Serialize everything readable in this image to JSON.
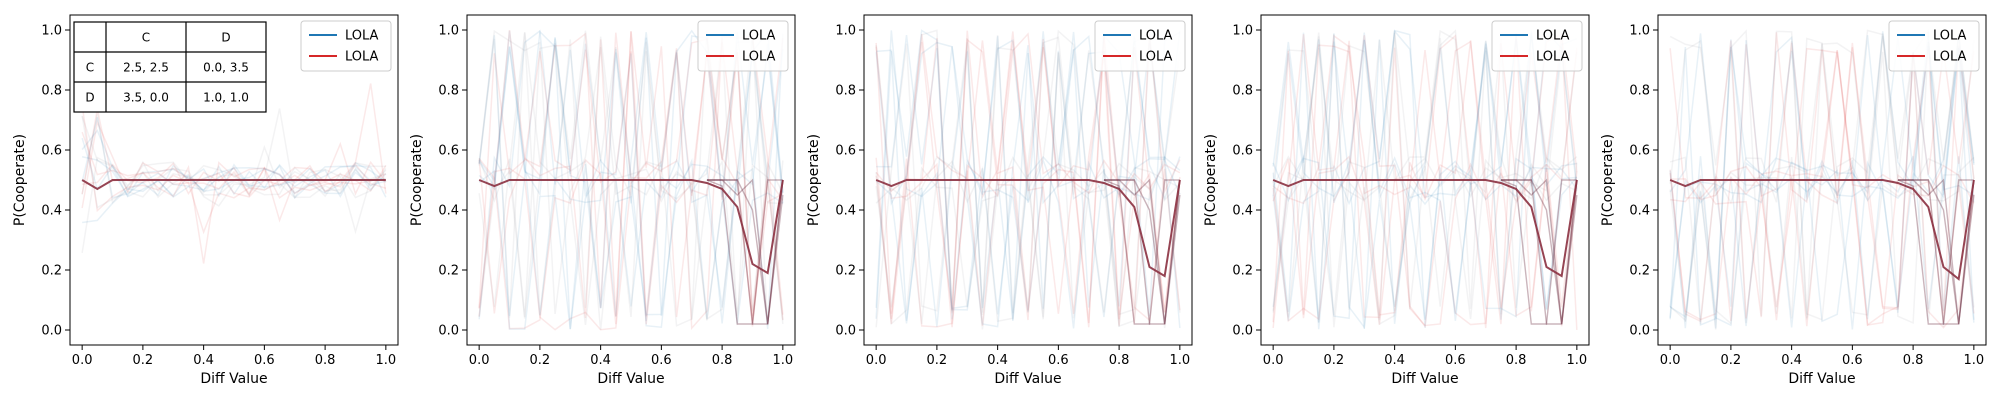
{
  "colors": {
    "blue": "#1f77b4",
    "red": "#d62728",
    "mean": "#8b3040",
    "grey": "#8a8a95"
  },
  "payoff_table": {
    "col_headers": [
      "C",
      "D"
    ],
    "rows": [
      {
        "label": "C",
        "cells": [
          "2.5, 2.5",
          "0.0, 3.5"
        ]
      },
      {
        "label": "D",
        "cells": [
          "3.5, 0.0",
          "1.0, 1.0"
        ]
      }
    ]
  },
  "chart_data": [
    {
      "type": "line",
      "xlabel": "Diff Value",
      "ylabel": "P(Cooperate)",
      "xlim": [
        -0.04,
        1.04
      ],
      "ylim": [
        -0.05,
        1.05
      ],
      "xticks": [
        "0.0",
        "0.2",
        "0.4",
        "0.6",
        "0.8",
        "1.0"
      ],
      "yticks": [
        "0.0",
        "0.2",
        "0.4",
        "0.6",
        "0.8",
        "1.0"
      ],
      "grid": false,
      "legend": "top-right",
      "legend_entries": [
        "LOLA",
        "LOLA"
      ],
      "series": [
        {
          "name": "LOLA",
          "color": "#1f77b4"
        },
        {
          "name": "LOLA",
          "color": "#d62728"
        }
      ],
      "x": [
        0.0,
        0.05,
        0.1,
        0.15,
        0.2,
        0.25,
        0.3,
        0.35,
        0.4,
        0.45,
        0.5,
        0.55,
        0.6,
        0.65,
        0.7,
        0.75,
        0.8,
        0.85,
        0.9,
        0.95,
        1.0
      ],
      "mean_curve": [
        0.5,
        0.47,
        0.5,
        0.5,
        0.5,
        0.5,
        0.5,
        0.5,
        0.5,
        0.5,
        0.5,
        0.5,
        0.5,
        0.5,
        0.5,
        0.5,
        0.5,
        0.5,
        0.5,
        0.5,
        0.5
      ],
      "faint_run_pattern": "low_noise",
      "has_payoff_table": true
    },
    {
      "type": "line",
      "xlabel": "Diff Value",
      "ylabel": "P(Cooperate)",
      "xlim": [
        -0.04,
        1.04
      ],
      "ylim": [
        -0.05,
        1.05
      ],
      "xticks": [
        "0.0",
        "0.2",
        "0.4",
        "0.6",
        "0.8",
        "1.0"
      ],
      "yticks": [
        "0.0",
        "0.2",
        "0.4",
        "0.6",
        "0.8",
        "1.0"
      ],
      "grid": false,
      "legend": "top-right",
      "legend_entries": [
        "LOLA",
        "LOLA"
      ],
      "series": [
        {
          "name": "LOLA",
          "color": "#1f77b4"
        },
        {
          "name": "LOLA",
          "color": "#d62728"
        }
      ],
      "x": [
        0.0,
        0.05,
        0.1,
        0.15,
        0.2,
        0.25,
        0.3,
        0.35,
        0.4,
        0.45,
        0.5,
        0.55,
        0.6,
        0.65,
        0.7,
        0.75,
        0.8,
        0.85,
        0.9,
        0.95,
        1.0
      ],
      "mean_curve": [
        0.5,
        0.48,
        0.5,
        0.5,
        0.5,
        0.5,
        0.5,
        0.5,
        0.5,
        0.5,
        0.5,
        0.5,
        0.5,
        0.5,
        0.5,
        0.49,
        0.47,
        0.41,
        0.22,
        0.19,
        0.5
      ],
      "faint_run_pattern": "high_noise",
      "has_payoff_table": false
    },
    {
      "type": "line",
      "xlabel": "Diff Value",
      "ylabel": "P(Cooperate)",
      "xlim": [
        -0.04,
        1.04
      ],
      "ylim": [
        -0.05,
        1.05
      ],
      "xticks": [
        "0.0",
        "0.2",
        "0.4",
        "0.6",
        "0.8",
        "1.0"
      ],
      "yticks": [
        "0.0",
        "0.2",
        "0.4",
        "0.6",
        "0.8",
        "1.0"
      ],
      "grid": false,
      "legend": "top-right",
      "legend_entries": [
        "LOLA",
        "LOLA"
      ],
      "series": [
        {
          "name": "LOLA",
          "color": "#1f77b4"
        },
        {
          "name": "LOLA",
          "color": "#d62728"
        }
      ],
      "x": [
        0.0,
        0.05,
        0.1,
        0.15,
        0.2,
        0.25,
        0.3,
        0.35,
        0.4,
        0.45,
        0.5,
        0.55,
        0.6,
        0.65,
        0.7,
        0.75,
        0.8,
        0.85,
        0.9,
        0.95,
        1.0
      ],
      "mean_curve": [
        0.5,
        0.48,
        0.5,
        0.5,
        0.5,
        0.5,
        0.5,
        0.5,
        0.5,
        0.5,
        0.5,
        0.5,
        0.5,
        0.5,
        0.5,
        0.49,
        0.47,
        0.41,
        0.21,
        0.18,
        0.5
      ],
      "faint_run_pattern": "high_noise",
      "has_payoff_table": false
    },
    {
      "type": "line",
      "xlabel": "Diff Value",
      "ylabel": "P(Cooperate)",
      "xlim": [
        -0.04,
        1.04
      ],
      "ylim": [
        -0.05,
        1.05
      ],
      "xticks": [
        "0.0",
        "0.2",
        "0.4",
        "0.6",
        "0.8",
        "1.0"
      ],
      "yticks": [
        "0.0",
        "0.2",
        "0.4",
        "0.6",
        "0.8",
        "1.0"
      ],
      "grid": false,
      "legend": "top-right",
      "legend_entries": [
        "LOLA",
        "LOLA"
      ],
      "series": [
        {
          "name": "LOLA",
          "color": "#1f77b4"
        },
        {
          "name": "LOLA",
          "color": "#d62728"
        }
      ],
      "x": [
        0.0,
        0.05,
        0.1,
        0.15,
        0.2,
        0.25,
        0.3,
        0.35,
        0.4,
        0.45,
        0.5,
        0.55,
        0.6,
        0.65,
        0.7,
        0.75,
        0.8,
        0.85,
        0.9,
        0.95,
        1.0
      ],
      "mean_curve": [
        0.5,
        0.48,
        0.5,
        0.5,
        0.5,
        0.5,
        0.5,
        0.5,
        0.5,
        0.5,
        0.5,
        0.5,
        0.5,
        0.5,
        0.5,
        0.49,
        0.47,
        0.41,
        0.21,
        0.18,
        0.5
      ],
      "faint_run_pattern": "high_noise",
      "has_payoff_table": false
    },
    {
      "type": "line",
      "xlabel": "Diff Value",
      "ylabel": "P(Cooperate)",
      "xlim": [
        -0.04,
        1.04
      ],
      "ylim": [
        -0.05,
        1.05
      ],
      "xticks": [
        "0.0",
        "0.2",
        "0.4",
        "0.6",
        "0.8",
        "1.0"
      ],
      "yticks": [
        "0.0",
        "0.2",
        "0.4",
        "0.6",
        "0.8",
        "1.0"
      ],
      "grid": false,
      "legend": "top-right",
      "legend_entries": [
        "LOLA",
        "LOLA"
      ],
      "series": [
        {
          "name": "LOLA",
          "color": "#1f77b4"
        },
        {
          "name": "LOLA",
          "color": "#d62728"
        }
      ],
      "x": [
        0.0,
        0.05,
        0.1,
        0.15,
        0.2,
        0.25,
        0.3,
        0.35,
        0.4,
        0.45,
        0.5,
        0.55,
        0.6,
        0.65,
        0.7,
        0.75,
        0.8,
        0.85,
        0.9,
        0.95,
        1.0
      ],
      "mean_curve": [
        0.5,
        0.48,
        0.5,
        0.5,
        0.5,
        0.5,
        0.5,
        0.5,
        0.5,
        0.5,
        0.5,
        0.5,
        0.5,
        0.5,
        0.5,
        0.49,
        0.47,
        0.41,
        0.21,
        0.17,
        0.5
      ],
      "faint_run_pattern": "high_noise",
      "has_payoff_table": false
    }
  ]
}
